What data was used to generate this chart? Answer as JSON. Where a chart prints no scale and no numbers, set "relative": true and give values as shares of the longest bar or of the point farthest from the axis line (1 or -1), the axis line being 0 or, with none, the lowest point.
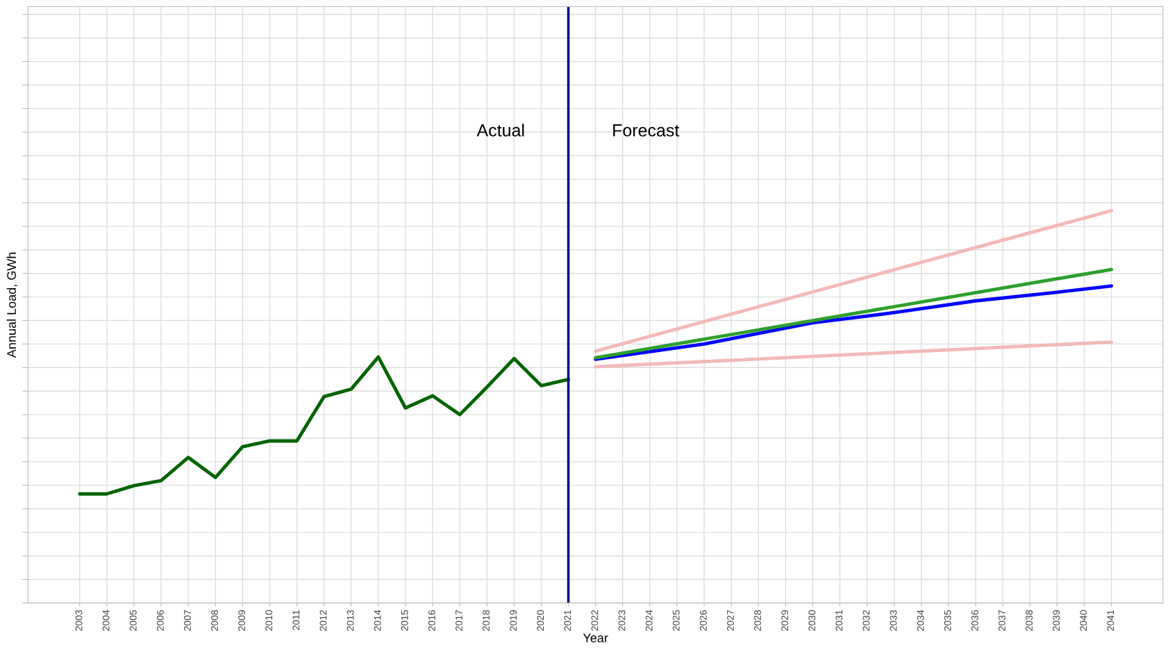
{
  "chart_data": {
    "type": "line",
    "relative": true,
    "xlabel": "Year",
    "ylabel": "Annual Load, GWh",
    "xlim": [
      2001.1,
      2042.9
    ],
    "xticks": [
      2003,
      2004,
      2005,
      2006,
      2007,
      2008,
      2009,
      2010,
      2011,
      2012,
      2013,
      2014,
      2015,
      2016,
      2017,
      2018,
      2019,
      2020,
      2021,
      2022,
      2023,
      2024,
      2025,
      2026,
      2027,
      2028,
      2029,
      2030,
      2031,
      2032,
      2033,
      2034,
      2035,
      2036,
      2037,
      2038,
      2039,
      2040,
      2041
    ],
    "grid": true,
    "marker": "none",
    "line_style": "solid",
    "ref_lines": [
      {
        "axis": "x",
        "value": 2021,
        "color": "#00008b"
      }
    ],
    "annotations": [
      "Actual",
      "Forecast"
    ],
    "series": [
      {
        "color": "#006400",
        "x": [
          2003,
          2004,
          2005,
          2006,
          2007,
          2008,
          2009,
          2010,
          2011,
          2012,
          2013,
          2014,
          2015,
          2016,
          2017,
          2018,
          2019,
          2020,
          2021
        ],
        "values": [
          0.278,
          0.278,
          0.299,
          0.312,
          0.371,
          0.32,
          0.398,
          0.413,
          0.413,
          0.526,
          0.545,
          0.627,
          0.497,
          0.528,
          0.48,
          0.55,
          0.623,
          0.554,
          0.57
        ]
      },
      {
        "color": "#f4b8b8",
        "x": [
          2022,
          2041
        ],
        "values": [
          0.642,
          1.0
        ]
      },
      {
        "color": "#f4b8b8",
        "x": [
          2022,
          2041
        ],
        "values": [
          0.602,
          0.665
        ]
      },
      {
        "color": "#0000ff",
        "x": [
          2022,
          2026,
          2030,
          2033,
          2036,
          2039,
          2041
        ],
        "values": [
          0.621,
          0.66,
          0.714,
          0.74,
          0.77,
          0.792,
          0.808
        ]
      },
      {
        "color": "#2ca02c",
        "x": [
          2022,
          2041
        ],
        "values": [
          0.625,
          0.85
        ]
      }
    ]
  }
}
